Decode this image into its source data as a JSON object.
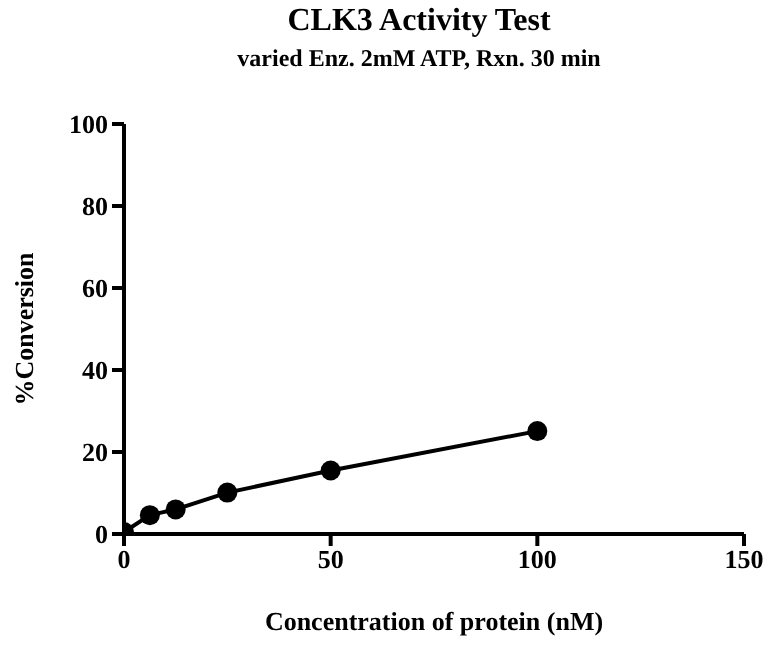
{
  "chart_data": {
    "type": "line",
    "title": "CLK3 Activity Test",
    "subtitle": "varied Enz. 2mM ATP, Rxn. 30 min",
    "xlabel": "Concentration of protein (nM)",
    "ylabel": "%Conversion",
    "x": [
      0,
      6.25,
      12.5,
      25,
      50,
      100
    ],
    "series": [
      {
        "color": "#000000",
        "values": [
          0.5,
          4.6,
          6.0,
          10.1,
          15.5,
          25.1
        ]
      }
    ],
    "xlim": [
      0,
      150
    ],
    "xticks": [
      0,
      50,
      100,
      150
    ],
    "ylim": [
      0,
      100
    ],
    "yticks": [
      0,
      20,
      40,
      60,
      80,
      100
    ],
    "grid": false,
    "legend": false,
    "marker": "circle",
    "line_style": "solid"
  }
}
